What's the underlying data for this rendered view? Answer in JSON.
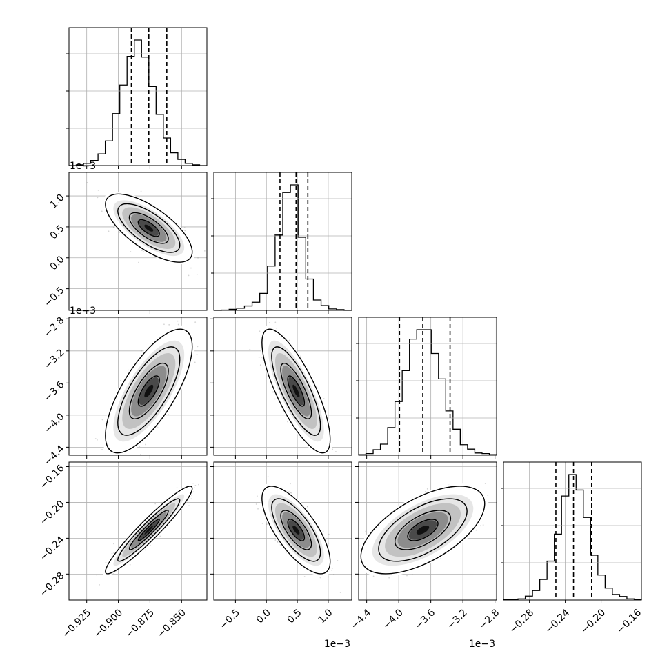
{
  "chart_data": {
    "type": "corner",
    "params": 4,
    "histogram_style": "step",
    "grid": true,
    "quantiles": [
      0.16,
      0.5,
      0.84
    ],
    "offset_texts": [
      {
        "label": "1e−3",
        "where": "y-axis, row 2"
      },
      {
        "label": "1e−3",
        "where": "y-axis, row 3"
      },
      {
        "label": "1e−3",
        "where": "x-axis, column 2"
      },
      {
        "label": "1e−3",
        "where": "x-axis, column 3"
      }
    ],
    "axes": [
      {
        "range": [
          -0.939,
          -0.83
        ],
        "ticks": [
          -0.925,
          -0.9,
          -0.875,
          -0.85
        ],
        "tick_labels": [
          "−0.925",
          "−0.900",
          "−0.875",
          "−0.850"
        ],
        "quantile_values": [
          -0.8897,
          -0.8759,
          -0.8617
        ],
        "hist": [
          0,
          2,
          6,
          14,
          32,
          68,
          143,
          222,
          301,
          346,
          299,
          218,
          141,
          76,
          35,
          17,
          6,
          2,
          0
        ]
      },
      {
        "range": [
          -0.85,
          1.38
        ],
        "ticks": [
          -0.5,
          0.0,
          0.5,
          1.0
        ],
        "tick_labels": [
          "−0.5",
          "0.0",
          "0.5",
          "1.0"
        ],
        "quantile_values": [
          0.22,
          0.48,
          0.67
        ],
        "hist": [
          0,
          1,
          3,
          6,
          12,
          22,
          46,
          120,
          204,
          319,
          340,
          198,
          85,
          28,
          13,
          4,
          2,
          0
        ]
      },
      {
        "range": [
          -4.5,
          -2.78
        ],
        "ticks": [
          -4.4,
          -4.0,
          -3.6,
          -3.2,
          -2.8
        ],
        "tick_labels": [
          "−4.4",
          "−4.0",
          "−3.6",
          "−3.2",
          "−2.8"
        ],
        "quantile_values": [
          -3.99,
          -3.7,
          -3.36
        ],
        "hist": [
          1,
          3,
          10,
          20,
          50,
          97,
          153,
          210,
          227,
          227,
          184,
          138,
          80,
          47,
          19,
          11,
          4,
          3,
          1
        ]
      },
      {
        "range": [
          -0.309,
          -0.155
        ],
        "ticks": [
          -0.28,
          -0.24,
          -0.2,
          -0.16
        ],
        "tick_labels": [
          "−0.28",
          "−0.24",
          "−0.20",
          "−0.16"
        ],
        "quantile_values": [
          -0.2505,
          -0.2308,
          -0.2106
        ],
        "hist": [
          1,
          2,
          3,
          10,
          24,
          52,
          98,
          166,
          262,
          316,
          277,
          208,
          113,
          63,
          30,
          14,
          9,
          3,
          1
        ]
      }
    ],
    "correlations": {
      "1-0": -0.7,
      "2-0": 0.72,
      "2-1": -0.78,
      "3-0": 0.95,
      "3-1": -0.72,
      "3-2": 0.6
    }
  }
}
